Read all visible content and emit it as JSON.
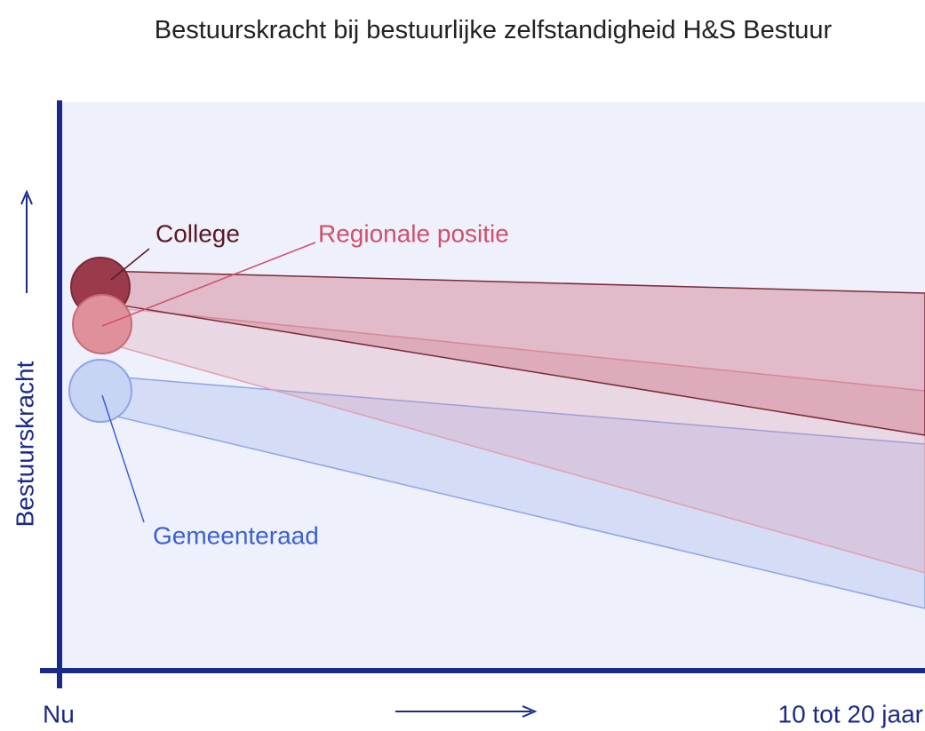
{
  "title": "Bestuurskracht bij bestuurlijke zelfstandigheid H&S Bestuur",
  "y_axis_label": "Bestuurskracht",
  "x_start_label": "Nu",
  "x_end_label": "10 tot 20 jaar",
  "labels": {
    "college": "College",
    "regionale_positie": "Regionale positie",
    "gemeenteraad": "Gemeenteraad"
  }
}
